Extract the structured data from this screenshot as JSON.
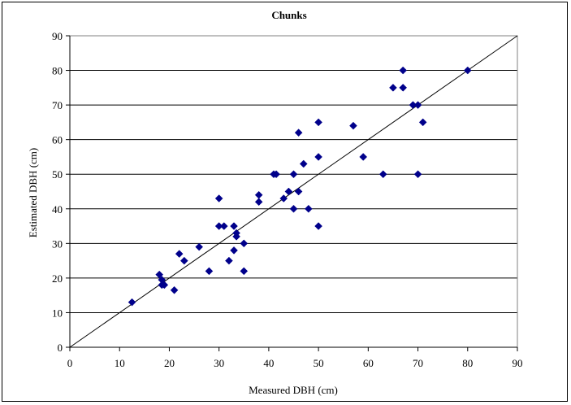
{
  "chart_data": {
    "type": "scatter",
    "title": "Chunks",
    "xlabel": "Measured DBH (cm)",
    "ylabel": "Estimated DBH (cm)",
    "xlim": [
      0,
      90
    ],
    "ylim": [
      0,
      90
    ],
    "xticks": [
      "0",
      "10",
      "20",
      "30",
      "40",
      "50",
      "60",
      "70",
      "80",
      "90"
    ],
    "yticks": [
      "0",
      "10",
      "20",
      "30",
      "40",
      "50",
      "60",
      "70",
      "80",
      "90"
    ],
    "grid": "horizontal",
    "legend": "none",
    "reference_line": {
      "from": [
        0,
        0
      ],
      "to": [
        90,
        90
      ]
    },
    "marker_color": "#00008B",
    "points": [
      [
        12.5,
        13
      ],
      [
        18,
        21
      ],
      [
        18.5,
        18
      ],
      [
        18.5,
        19.5
      ],
      [
        19,
        18
      ],
      [
        21,
        16.5
      ],
      [
        22,
        27
      ],
      [
        23,
        25
      ],
      [
        26,
        29
      ],
      [
        28,
        22
      ],
      [
        30,
        35
      ],
      [
        30,
        43
      ],
      [
        31,
        35
      ],
      [
        32,
        25
      ],
      [
        33,
        28
      ],
      [
        33,
        35
      ],
      [
        33.5,
        32
      ],
      [
        33.5,
        33
      ],
      [
        35,
        22
      ],
      [
        35,
        30
      ],
      [
        38,
        42
      ],
      [
        38,
        44
      ],
      [
        41,
        50
      ],
      [
        41.5,
        50
      ],
      [
        43,
        43
      ],
      [
        44,
        45
      ],
      [
        45,
        40
      ],
      [
        45,
        50
      ],
      [
        46,
        45
      ],
      [
        46,
        62
      ],
      [
        47,
        53
      ],
      [
        48,
        40
      ],
      [
        50,
        35
      ],
      [
        50,
        55
      ],
      [
        50,
        65
      ],
      [
        57,
        64
      ],
      [
        59,
        55
      ],
      [
        63,
        50
      ],
      [
        65,
        75
      ],
      [
        67,
        75
      ],
      [
        67,
        80
      ],
      [
        69,
        70
      ],
      [
        70,
        50
      ],
      [
        70,
        70
      ],
      [
        71,
        65
      ],
      [
        80,
        80
      ]
    ]
  }
}
